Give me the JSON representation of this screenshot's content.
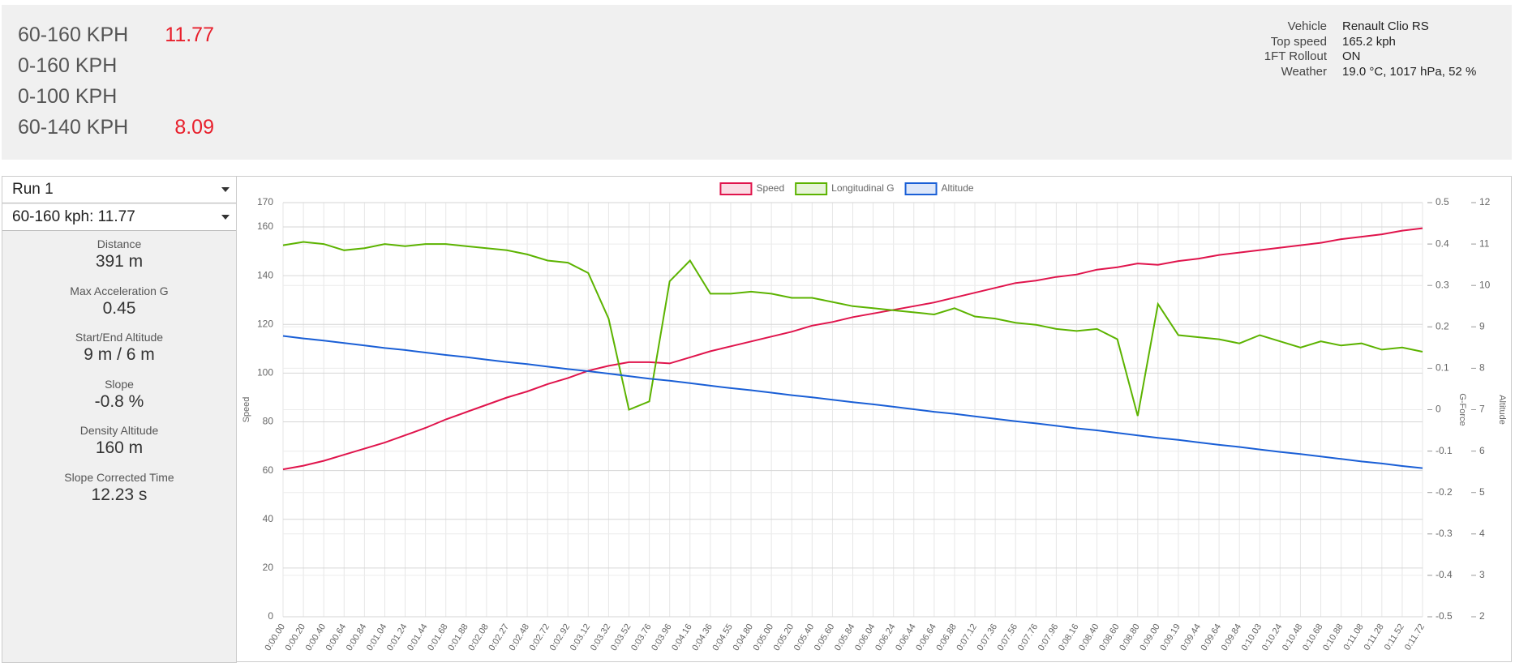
{
  "header": {
    "metrics": [
      {
        "label": "60-160 KPH",
        "value": "11.77"
      },
      {
        "label": "0-160 KPH"
      },
      {
        "label": "0-100 KPH"
      },
      {
        "label": "60-140 KPH",
        "value": "8.09"
      }
    ],
    "info": [
      {
        "label": "Vehicle",
        "value": "Renault Clio RS"
      },
      {
        "label": "Top speed",
        "value": "165.2 kph"
      },
      {
        "label": "1FT Rollout",
        "value": "ON"
      },
      {
        "label": "Weather",
        "value": "19.0 °C, 1017 hPa, 52 %"
      }
    ]
  },
  "sidebar": {
    "run": "Run 1",
    "segment": "60-160 kph: 11.77",
    "stats": [
      {
        "label": "Distance",
        "value": "391 m"
      },
      {
        "label": "Max Acceleration G",
        "value": "0.45"
      },
      {
        "label": "Start/End Altitude",
        "value": "9 m / 6 m"
      },
      {
        "label": "Slope",
        "value": "-0.8 %"
      },
      {
        "label": "Density Altitude",
        "value": "160 m"
      },
      {
        "label": "Slope Corrected Time",
        "value": "12.23 s"
      }
    ]
  },
  "chart_data": {
    "type": "line",
    "categories": [
      "0:00.00",
      "0:00.20",
      "0:00.40",
      "0:00.64",
      "0:00.84",
      "0:01.04",
      "0:01.24",
      "0:01.44",
      "0:01.68",
      "0:01.88",
      "0:02.08",
      "0:02.27",
      "0:02.48",
      "0:02.72",
      "0:02.92",
      "0:03.12",
      "0:03.32",
      "0:03.52",
      "0:03.76",
      "0:03.96",
      "0:04.16",
      "0:04.36",
      "0:04.55",
      "0:04.80",
      "0:05.00",
      "0:05.20",
      "0:05.40",
      "0:05.60",
      "0:05.84",
      "0:06.04",
      "0:06.24",
      "0:06.44",
      "0:06.64",
      "0:06.88",
      "0:07.12",
      "0:07.36",
      "0:07.56",
      "0:07.76",
      "0:07.96",
      "0:08.16",
      "0:08.40",
      "0:08.60",
      "0:08.80",
      "0:09.00",
      "0:09.19",
      "0:09.44",
      "0:09.64",
      "0:09.84",
      "0:10.03",
      "0:10.24",
      "0:10.48",
      "0:10.68",
      "0:10.88",
      "0:11.08",
      "0:11.28",
      "0:11.52",
      "0:11.72"
    ],
    "series": [
      {
        "name": "Speed",
        "color": "#e0144c",
        "axis": "y",
        "values": [
          60.5,
          62,
          64,
          66.5,
          69,
          71.5,
          74.5,
          77.5,
          81,
          84,
          87,
          90,
          92.5,
          95.5,
          98,
          101,
          103,
          104.5,
          104.5,
          104,
          106.5,
          109,
          111,
          113,
          115,
          117,
          119.5,
          121,
          123,
          124.5,
          126,
          127.5,
          129,
          131,
          133,
          135,
          137,
          138,
          139.5,
          140.5,
          142.5,
          143.5,
          145,
          144.5,
          146,
          147,
          148.5,
          149.5,
          150.5,
          151.5,
          152.5,
          153.5,
          155,
          156,
          157,
          158.5,
          159.5
        ]
      },
      {
        "name": "Longitudinal G",
        "color": "#5cb300",
        "axis": "y2",
        "values": [
          0.397,
          0.405,
          0.4,
          0.385,
          0.39,
          0.4,
          0.395,
          0.4,
          0.4,
          0.395,
          0.39,
          0.385,
          0.375,
          0.36,
          0.355,
          0.33,
          0.22,
          0.0,
          0.02,
          0.31,
          0.36,
          0.28,
          0.28,
          0.285,
          0.28,
          0.27,
          0.27,
          0.26,
          0.25,
          0.245,
          0.24,
          0.235,
          0.23,
          0.245,
          0.225,
          0.22,
          0.21,
          0.205,
          0.195,
          0.19,
          0.195,
          0.17,
          -0.015,
          0.255,
          0.18,
          0.175,
          0.17,
          0.16,
          0.18,
          0.165,
          0.15,
          0.165,
          0.155,
          0.16,
          0.145,
          0.15,
          0.14
        ]
      },
      {
        "name": "Altitude",
        "color": "#1a5fd6",
        "axis": "y3",
        "values": [
          8.78,
          8.72,
          8.67,
          8.61,
          8.55,
          8.49,
          8.44,
          8.38,
          8.32,
          8.27,
          8.21,
          8.15,
          8.1,
          8.04,
          7.98,
          7.93,
          7.87,
          7.81,
          7.75,
          7.7,
          7.64,
          7.58,
          7.52,
          7.47,
          7.41,
          7.35,
          7.3,
          7.24,
          7.18,
          7.13,
          7.07,
          7.01,
          6.95,
          6.9,
          6.84,
          6.78,
          6.72,
          6.67,
          6.61,
          6.55,
          6.5,
          6.44,
          6.38,
          6.32,
          6.27,
          6.21,
          6.15,
          6.1,
          6.04,
          5.98,
          5.93,
          5.87,
          5.81,
          5.75,
          5.7,
          5.64,
          5.59
        ]
      }
    ],
    "y_label": "Speed",
    "ylim": [
      0,
      170
    ],
    "yticks": [
      0,
      20,
      40,
      60,
      80,
      100,
      120,
      140,
      160,
      170
    ],
    "y2_label": "G-Force",
    "y2lim": [
      -0.5,
      0.5
    ],
    "y2ticks": [
      -0.5,
      -0.4,
      -0.3,
      -0.2,
      -0.1,
      0,
      0.1,
      0.2,
      0.3,
      0.4,
      0.5
    ],
    "y3_label": "Altitude",
    "y3lim": [
      2,
      12
    ],
    "y3ticks": [
      2,
      3,
      4,
      5,
      6,
      7,
      8,
      9,
      10,
      11,
      12
    ],
    "grid": true,
    "legend": "top"
  }
}
